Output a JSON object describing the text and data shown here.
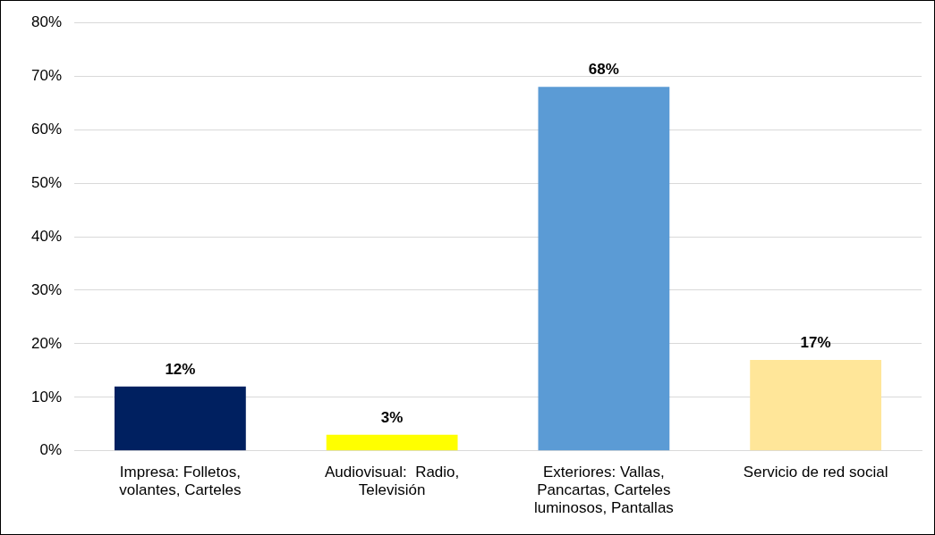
{
  "chart_data": {
    "type": "bar",
    "categories": [
      "Impresa: Folletos, volantes, Carteles",
      "Audiovisual:  Radio, Televisión",
      "Exteriores: Vallas, Pancartas, Carteles luminosos, Pantallas",
      "Servicio de red social"
    ],
    "values": [
      12,
      3,
      68,
      17
    ],
    "colors": [
      "#002060",
      "#ffff00",
      "#5b9bd5",
      "#ffe699"
    ],
    "value_labels": [
      "12%",
      "3%",
      "68%",
      "17%"
    ],
    "ylim": [
      0,
      80
    ],
    "yticks": [
      {
        "value": 0,
        "label": "0%"
      },
      {
        "value": 10,
        "label": "10%"
      },
      {
        "value": 20,
        "label": "20%"
      },
      {
        "value": 30,
        "label": "30%"
      },
      {
        "value": 40,
        "label": "40%"
      },
      {
        "value": 50,
        "label": "50%"
      },
      {
        "value": 60,
        "label": "60%"
      },
      {
        "value": 70,
        "label": "70%"
      },
      {
        "value": 80,
        "label": "80%"
      }
    ],
    "grid": "y"
  }
}
